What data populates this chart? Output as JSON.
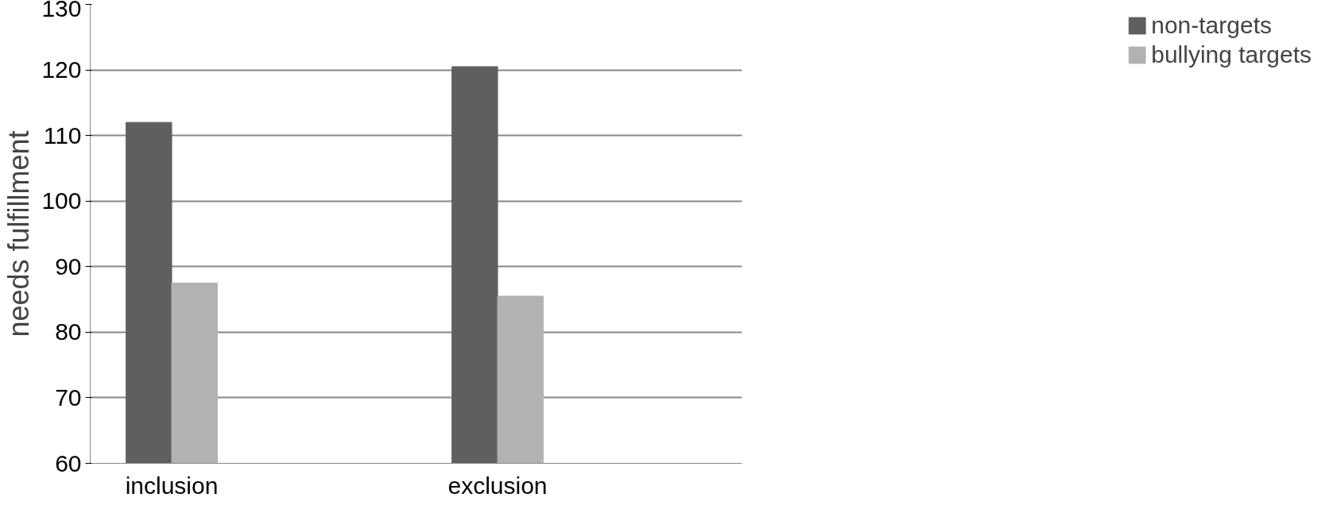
{
  "chart_data": {
    "type": "bar",
    "ylabel": "needs fulfillment",
    "categories": [
      "inclusion",
      null,
      "exclusion",
      null
    ],
    "series": [
      {
        "name": "non-targets",
        "color": "#5f5f5f",
        "values": [
          112,
          null,
          120.5,
          null
        ]
      },
      {
        "name": "bullying targets",
        "color": "#b2b2b2",
        "values": [
          87.5,
          null,
          85.5,
          null
        ]
      }
    ],
    "ylim": [
      60,
      130
    ],
    "yticks": [
      60,
      70,
      80,
      90,
      100,
      110,
      120,
      130
    ],
    "grid": "y",
    "legend": "right"
  }
}
